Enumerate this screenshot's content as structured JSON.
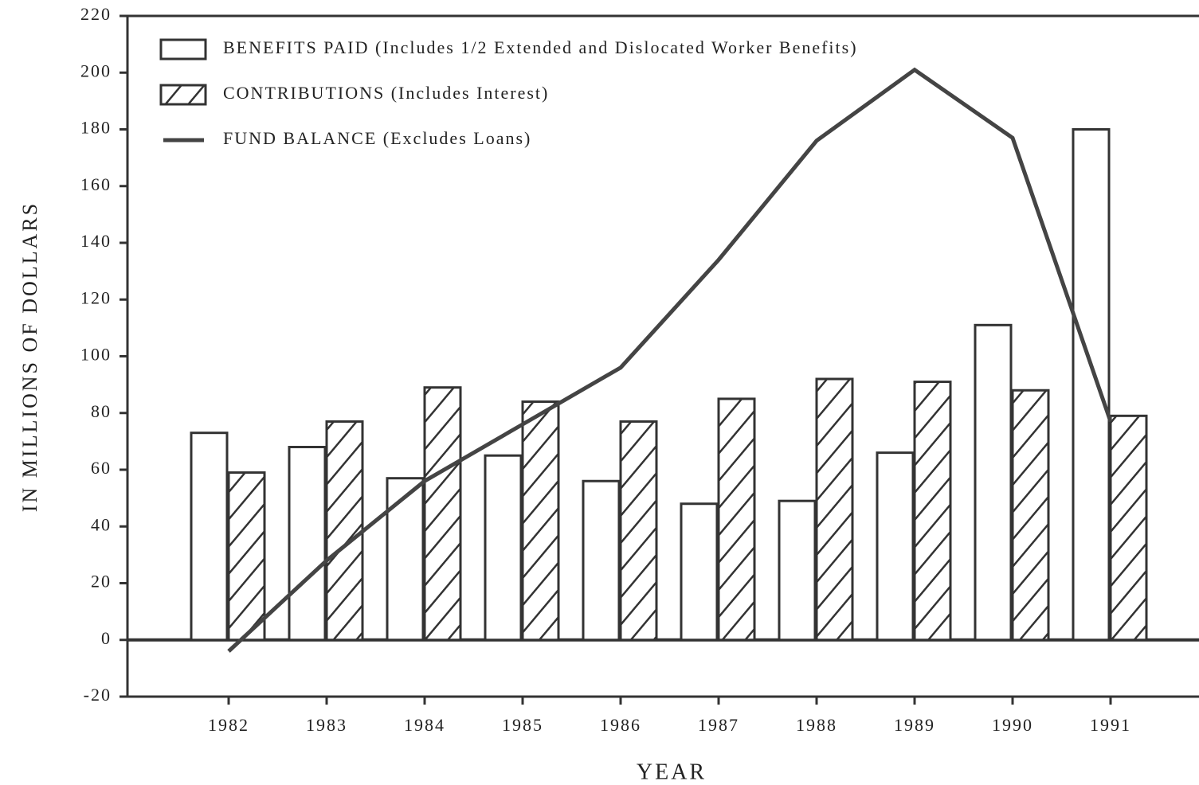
{
  "chart_data": {
    "type": "bar-line",
    "xlabel": "YEAR",
    "ylabel": "IN MILLIONS OF DOLLARS",
    "categories": [
      "1982",
      "1983",
      "1984",
      "1985",
      "1986",
      "1987",
      "1988",
      "1989",
      "1990",
      "1991"
    ],
    "series": [
      {
        "name": "BENEFITS PAID (Includes 1/2 Extended and Dislocated Worker Benefits)",
        "type": "bar",
        "color": "#ffffff",
        "hatch": false,
        "values": [
          73,
          68,
          57,
          65,
          56,
          48,
          49,
          66,
          111,
          180
        ]
      },
      {
        "name": "CONTRIBUTIONS (Includes Interest)",
        "type": "bar",
        "color": "#ffffff",
        "hatch": true,
        "values": [
          59,
          77,
          89,
          84,
          77,
          85,
          92,
          91,
          88,
          79
        ]
      },
      {
        "name": "FUND BALANCE (Excludes Loans)",
        "type": "line",
        "color": "#444444",
        "values": [
          -4,
          28,
          56,
          76,
          96,
          134,
          176,
          201,
          177,
          77
        ]
      }
    ],
    "ylim": [
      -20,
      220
    ],
    "yticks": [
      -20,
      0,
      20,
      40,
      60,
      80,
      100,
      120,
      140,
      160,
      180,
      200,
      220
    ],
    "legend": "upper left"
  }
}
